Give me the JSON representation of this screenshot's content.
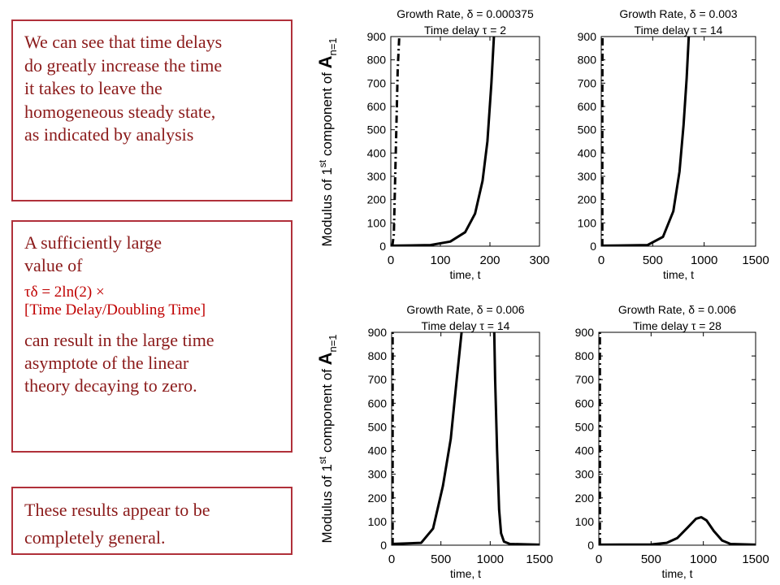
{
  "text": {
    "box1": [
      "We can see that time delays",
      "do greatly increase the time",
      "it takes to leave the",
      "homogeneous steady state,",
      "as indicated by analysis"
    ],
    "box2_intro": [
      "A sufficiently large",
      "value of"
    ],
    "box2_formula_a": "τδ = 2ln(2) ×",
    "box2_formula_b": "[Time Delay/Doubling Time]",
    "box2_outro": [
      "can result in the large time",
      "asymptote of the linear",
      "theory decaying to zero."
    ],
    "box3": [
      "These results appear to be",
      "completely general."
    ]
  },
  "colors": {
    "box_border": "#b0303a",
    "box_text": "#8b1a1a",
    "formula_text": "#c00000",
    "plot_line": "#000000"
  },
  "ylabel": {
    "prefix": "Modulus of 1",
    "sup": "st",
    "mid": " component of ",
    "symbol": "A",
    "sub": "n=1"
  },
  "chart_data": [
    {
      "type": "line",
      "title": "Growth Rate, δ = 0.000375",
      "subtitle": "Time delay τ = 2",
      "xlabel": "time, t",
      "xlim": [
        0,
        300
      ],
      "ylim": [
        0,
        900
      ],
      "xticks": [
        "0",
        "100",
        "200",
        "300"
      ],
      "yticks": [
        "0",
        "100",
        "200",
        "300",
        "400",
        "500",
        "600",
        "700",
        "800",
        "900"
      ],
      "series": [
        {
          "style": "solid",
          "x": [
            0,
            80,
            120,
            150,
            170,
            185,
            195,
            203,
            208
          ],
          "y": [
            2,
            5,
            20,
            60,
            140,
            280,
            450,
            700,
            900
          ]
        },
        {
          "style": "dashdot",
          "x": [
            3,
            6,
            10,
            14,
            17
          ],
          "y": [
            0,
            50,
            400,
            760,
            900
          ]
        }
      ]
    },
    {
      "type": "line",
      "title": "Growth Rate, δ = 0.003",
      "subtitle": "Time delay τ = 14",
      "xlabel": "time, t",
      "xlim": [
        0,
        1500
      ],
      "ylim": [
        0,
        900
      ],
      "xticks": [
        "0",
        "500",
        "1000",
        "1500"
      ],
      "yticks": [
        "0",
        "100",
        "200",
        "300",
        "400",
        "500",
        "600",
        "700",
        "800",
        "900"
      ],
      "series": [
        {
          "style": "solid",
          "x": [
            0,
            450,
            600,
            700,
            760,
            800,
            830,
            850
          ],
          "y": [
            2,
            5,
            40,
            150,
            320,
            520,
            720,
            900
          ]
        },
        {
          "style": "dashdot",
          "x": [
            10,
            10,
            12
          ],
          "y": [
            0,
            600,
            900
          ]
        }
      ]
    },
    {
      "type": "line",
      "title": "Growth Rate, δ = 0.006",
      "subtitle": "Time delay τ = 14",
      "xlabel": "time, t",
      "xlim": [
        0,
        1500
      ],
      "ylim": [
        0,
        900
      ],
      "xticks": [
        "0",
        "500",
        "1000",
        "1500"
      ],
      "yticks": [
        "0",
        "100",
        "200",
        "300",
        "400",
        "500",
        "600",
        "700",
        "800",
        "900"
      ],
      "series": [
        {
          "style": "solid",
          "x": [
            0,
            300,
            420,
            520,
            600,
            660,
            710,
            720
          ],
          "y": [
            5,
            10,
            70,
            250,
            450,
            700,
            900,
            920
          ]
        },
        {
          "style": "solid",
          "x": [
            1040,
            1050,
            1070,
            1090,
            1110,
            1140,
            1200,
            1500
          ],
          "y": [
            920,
            700,
            400,
            150,
            50,
            15,
            5,
            2
          ]
        },
        {
          "style": "dashdot",
          "x": [
            10,
            10
          ],
          "y": [
            0,
            900
          ]
        }
      ]
    },
    {
      "type": "line",
      "title": "Growth Rate, δ = 0.006",
      "subtitle": "Time delay τ = 28",
      "xlabel": "time, t",
      "xlim": [
        0,
        1500
      ],
      "ylim": [
        0,
        900
      ],
      "xticks": [
        "0",
        "500",
        "1000",
        "1500"
      ],
      "yticks": [
        "0",
        "100",
        "200",
        "300",
        "400",
        "500",
        "600",
        "700",
        "800",
        "900"
      ],
      "series": [
        {
          "style": "solid",
          "x": [
            0,
            500,
            650,
            750,
            850,
            930,
            980,
            1030,
            1100,
            1180,
            1260,
            1500
          ],
          "y": [
            2,
            3,
            10,
            30,
            75,
            112,
            118,
            105,
            60,
            20,
            5,
            2
          ]
        },
        {
          "style": "dashdot",
          "x": [
            10,
            10
          ],
          "y": [
            0,
            900
          ]
        }
      ]
    }
  ]
}
